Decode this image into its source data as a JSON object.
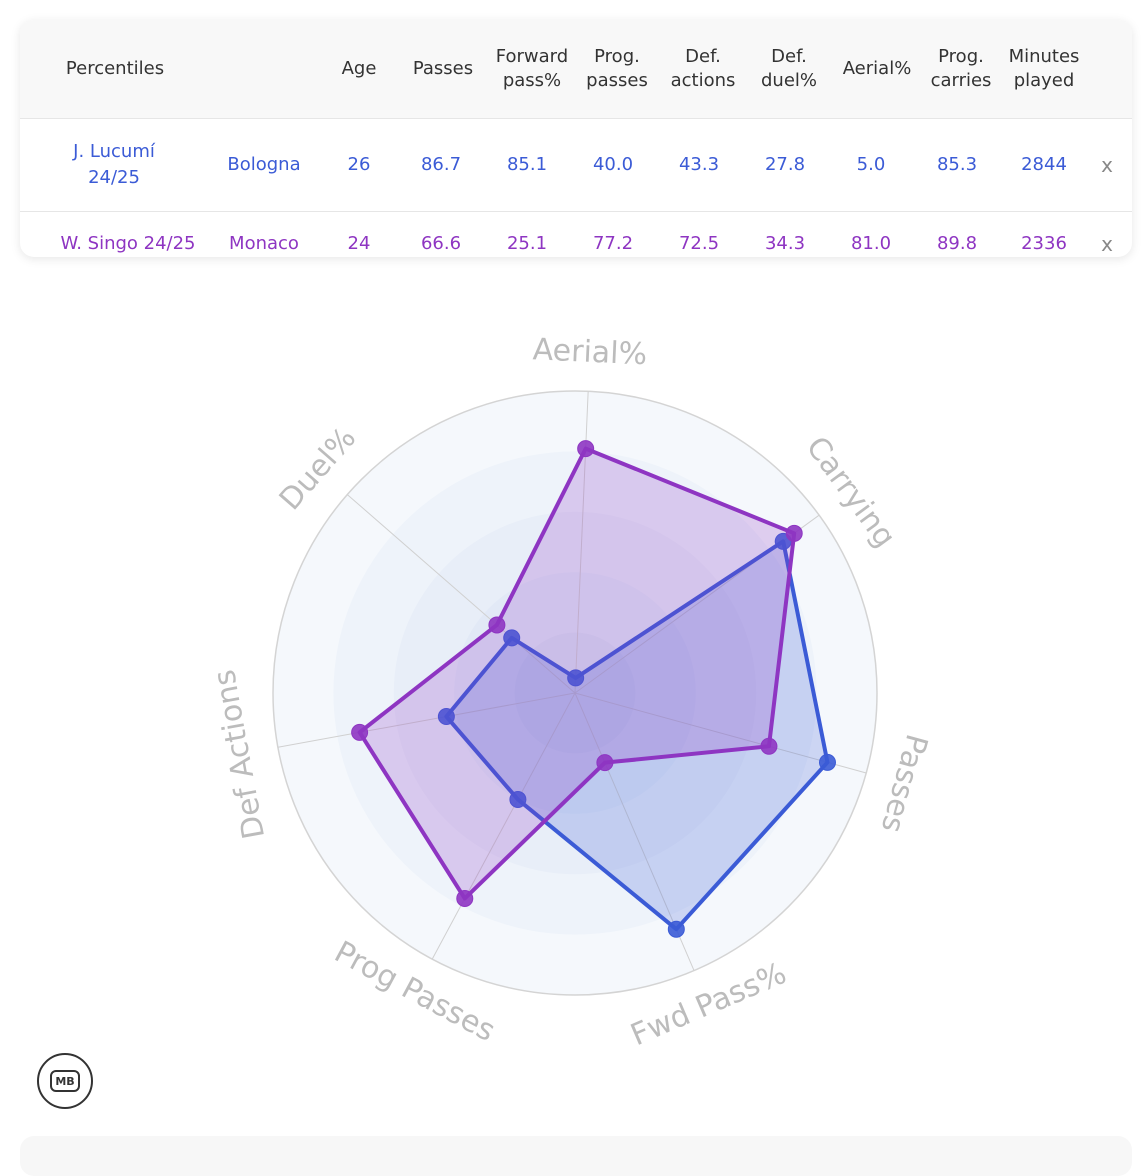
{
  "table": {
    "headers": [
      "Percentiles",
      "",
      "Age",
      "Passes",
      "Forward pass%",
      "Prog. passes",
      "Def. actions",
      "Def. duel%",
      "Aerial%",
      "Prog. carries",
      "Minutes played"
    ],
    "rows": [
      {
        "player": "J. Lucumí 24/25",
        "team": "Bologna",
        "values": [
          "26",
          "86.7",
          "85.1",
          "40.0",
          "43.3",
          "27.8",
          "5.0",
          "85.3",
          "2844"
        ],
        "remove": "x",
        "color": "#3b5bd6"
      },
      {
        "player": "W. Singo 24/25",
        "team": "Monaco",
        "values": [
          "24",
          "66.6",
          "25.1",
          "77.2",
          "72.5",
          "34.3",
          "81.0",
          "89.8",
          "2336"
        ],
        "remove": "x",
        "color": "#8e35c2"
      }
    ]
  },
  "chart_data": {
    "type": "radar",
    "axes": [
      "Aerial%",
      "Carrying",
      "Passes",
      "Fwd Pass%",
      "Prog Passes",
      "Def Actions",
      "Duel%"
    ],
    "range": [
      0,
      100
    ],
    "series": [
      {
        "name": "J. Lucumí 24/25",
        "color": "#3b5bd6",
        "values": [
          5.0,
          85.3,
          86.7,
          85.1,
          40.0,
          43.3,
          27.8
        ]
      },
      {
        "name": "W. Singo 24/25",
        "color": "#8e35c2",
        "values": [
          81.0,
          89.8,
          66.6,
          25.1,
          77.2,
          72.5,
          34.3
        ]
      }
    ]
  },
  "logo": {
    "text": "MB",
    "icon": "mb-logo-icon"
  }
}
